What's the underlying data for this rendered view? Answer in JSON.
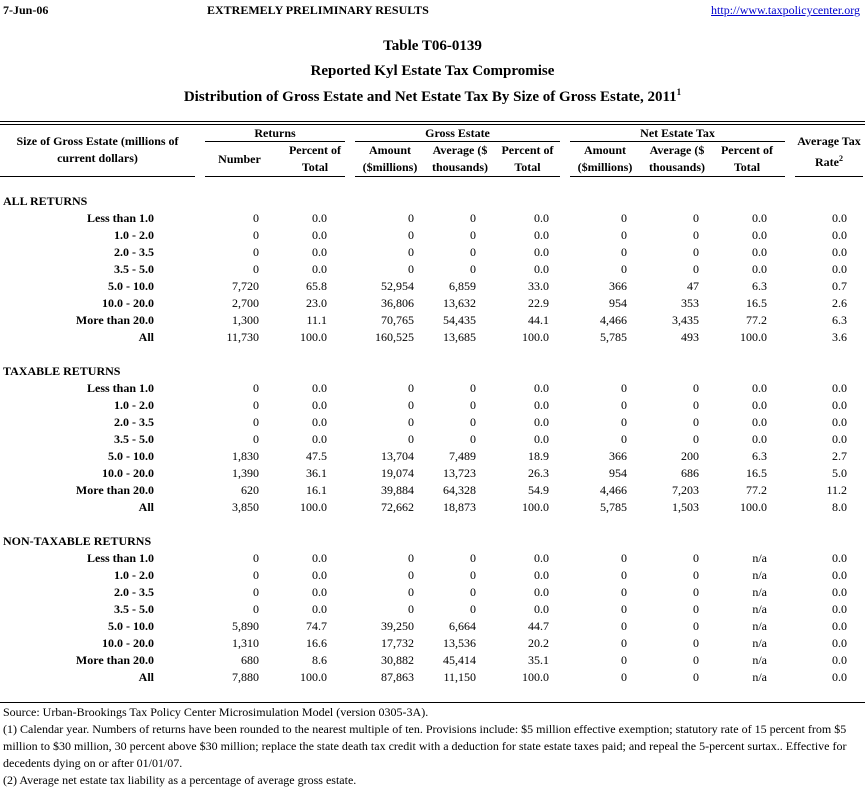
{
  "header": {
    "date": "7-Jun-06",
    "status": "EXTREMELY PRELIMINARY RESULTS",
    "link": "http://www.taxpolicycenter.org"
  },
  "title": {
    "table_id": "Table T06-0139",
    "line2": "Reported Kyl Estate Tax Compromise",
    "line3": "Distribution of Gross Estate and Net Estate Tax By Size of Gross Estate, 2011",
    "line3_sup": "1"
  },
  "columns": {
    "label": "Size of Gross Estate (millions of current dollars)",
    "groups": [
      "Returns",
      "Gross Estate",
      "Net Estate Tax"
    ],
    "sub": [
      "Number",
      "Percent of Total",
      "Amount ($millions)",
      "Average ($ thousands)",
      "Percent of Total",
      "Amount ($millions)",
      "Average ($ thousands)",
      "Percent of Total"
    ],
    "rate": "Average Tax Rate",
    "rate_sup": "2"
  },
  "sections": [
    {
      "title": "ALL RETURNS",
      "rows": [
        [
          "Less than 1.0",
          "0",
          "0.0",
          "0",
          "0",
          "0.0",
          "0",
          "0",
          "0.0",
          "0.0"
        ],
        [
          "1.0 - 2.0",
          "0",
          "0.0",
          "0",
          "0",
          "0.0",
          "0",
          "0",
          "0.0",
          "0.0"
        ],
        [
          "2.0 - 3.5",
          "0",
          "0.0",
          "0",
          "0",
          "0.0",
          "0",
          "0",
          "0.0",
          "0.0"
        ],
        [
          "3.5 - 5.0",
          "0",
          "0.0",
          "0",
          "0",
          "0.0",
          "0",
          "0",
          "0.0",
          "0.0"
        ],
        [
          "5.0 - 10.0",
          "7,720",
          "65.8",
          "52,954",
          "6,859",
          "33.0",
          "366",
          "47",
          "6.3",
          "0.7"
        ],
        [
          "10.0 - 20.0",
          "2,700",
          "23.0",
          "36,806",
          "13,632",
          "22.9",
          "954",
          "353",
          "16.5",
          "2.6"
        ],
        [
          "More than 20.0",
          "1,300",
          "11.1",
          "70,765",
          "54,435",
          "44.1",
          "4,466",
          "3,435",
          "77.2",
          "6.3"
        ],
        [
          "All",
          "11,730",
          "100.0",
          "160,525",
          "13,685",
          "100.0",
          "5,785",
          "493",
          "100.0",
          "3.6"
        ]
      ]
    },
    {
      "title": "TAXABLE RETURNS",
      "rows": [
        [
          "Less than 1.0",
          "0",
          "0.0",
          "0",
          "0",
          "0.0",
          "0",
          "0",
          "0.0",
          "0.0"
        ],
        [
          "1.0 - 2.0",
          "0",
          "0.0",
          "0",
          "0",
          "0.0",
          "0",
          "0",
          "0.0",
          "0.0"
        ],
        [
          "2.0 - 3.5",
          "0",
          "0.0",
          "0",
          "0",
          "0.0",
          "0",
          "0",
          "0.0",
          "0.0"
        ],
        [
          "3.5 - 5.0",
          "0",
          "0.0",
          "0",
          "0",
          "0.0",
          "0",
          "0",
          "0.0",
          "0.0"
        ],
        [
          "5.0 - 10.0",
          "1,830",
          "47.5",
          "13,704",
          "7,489",
          "18.9",
          "366",
          "200",
          "6.3",
          "2.7"
        ],
        [
          "10.0 - 20.0",
          "1,390",
          "36.1",
          "19,074",
          "13,723",
          "26.3",
          "954",
          "686",
          "16.5",
          "5.0"
        ],
        [
          "More than 20.0",
          "620",
          "16.1",
          "39,884",
          "64,328",
          "54.9",
          "4,466",
          "7,203",
          "77.2",
          "11.2"
        ],
        [
          "All",
          "3,850",
          "100.0",
          "72,662",
          "18,873",
          "100.0",
          "5,785",
          "1,503",
          "100.0",
          "8.0"
        ]
      ]
    },
    {
      "title": "NON-TAXABLE RETURNS",
      "rows": [
        [
          "Less than 1.0",
          "0",
          "0.0",
          "0",
          "0",
          "0.0",
          "0",
          "0",
          "n/a",
          "0.0"
        ],
        [
          "1.0 - 2.0",
          "0",
          "0.0",
          "0",
          "0",
          "0.0",
          "0",
          "0",
          "n/a",
          "0.0"
        ],
        [
          "2.0 - 3.5",
          "0",
          "0.0",
          "0",
          "0",
          "0.0",
          "0",
          "0",
          "n/a",
          "0.0"
        ],
        [
          "3.5 - 5.0",
          "0",
          "0.0",
          "0",
          "0",
          "0.0",
          "0",
          "0",
          "n/a",
          "0.0"
        ],
        [
          "5.0 - 10.0",
          "5,890",
          "74.7",
          "39,250",
          "6,664",
          "44.7",
          "0",
          "0",
          "n/a",
          "0.0"
        ],
        [
          "10.0 - 20.0",
          "1,310",
          "16.6",
          "17,732",
          "13,536",
          "20.2",
          "0",
          "0",
          "n/a",
          "0.0"
        ],
        [
          "More than 20.0",
          "680",
          "8.6",
          "30,882",
          "45,414",
          "35.1",
          "0",
          "0",
          "n/a",
          "0.0"
        ],
        [
          "All",
          "7,880",
          "100.0",
          "87,863",
          "11,150",
          "100.0",
          "0",
          "0",
          "n/a",
          "0.0"
        ]
      ]
    }
  ],
  "footnotes": {
    "source": "Source: Urban-Brookings Tax Policy Center Microsimulation Model (version 0305-3A).",
    "note1": "(1) Calendar year. Numbers of returns have been rounded to the nearest multiple of ten. Provisions include: $5 million effective exemption; statutory rate of 15 percent from $5 million to $30 million, 30 percent above $30 million; replace the state death tax credit with a deduction for state estate taxes paid; and repeal the 5-percent surtax.. Effective for decedents dying on or after 01/01/07.",
    "note2": "(2) Average net estate tax liability as a percentage of average gross estate."
  }
}
